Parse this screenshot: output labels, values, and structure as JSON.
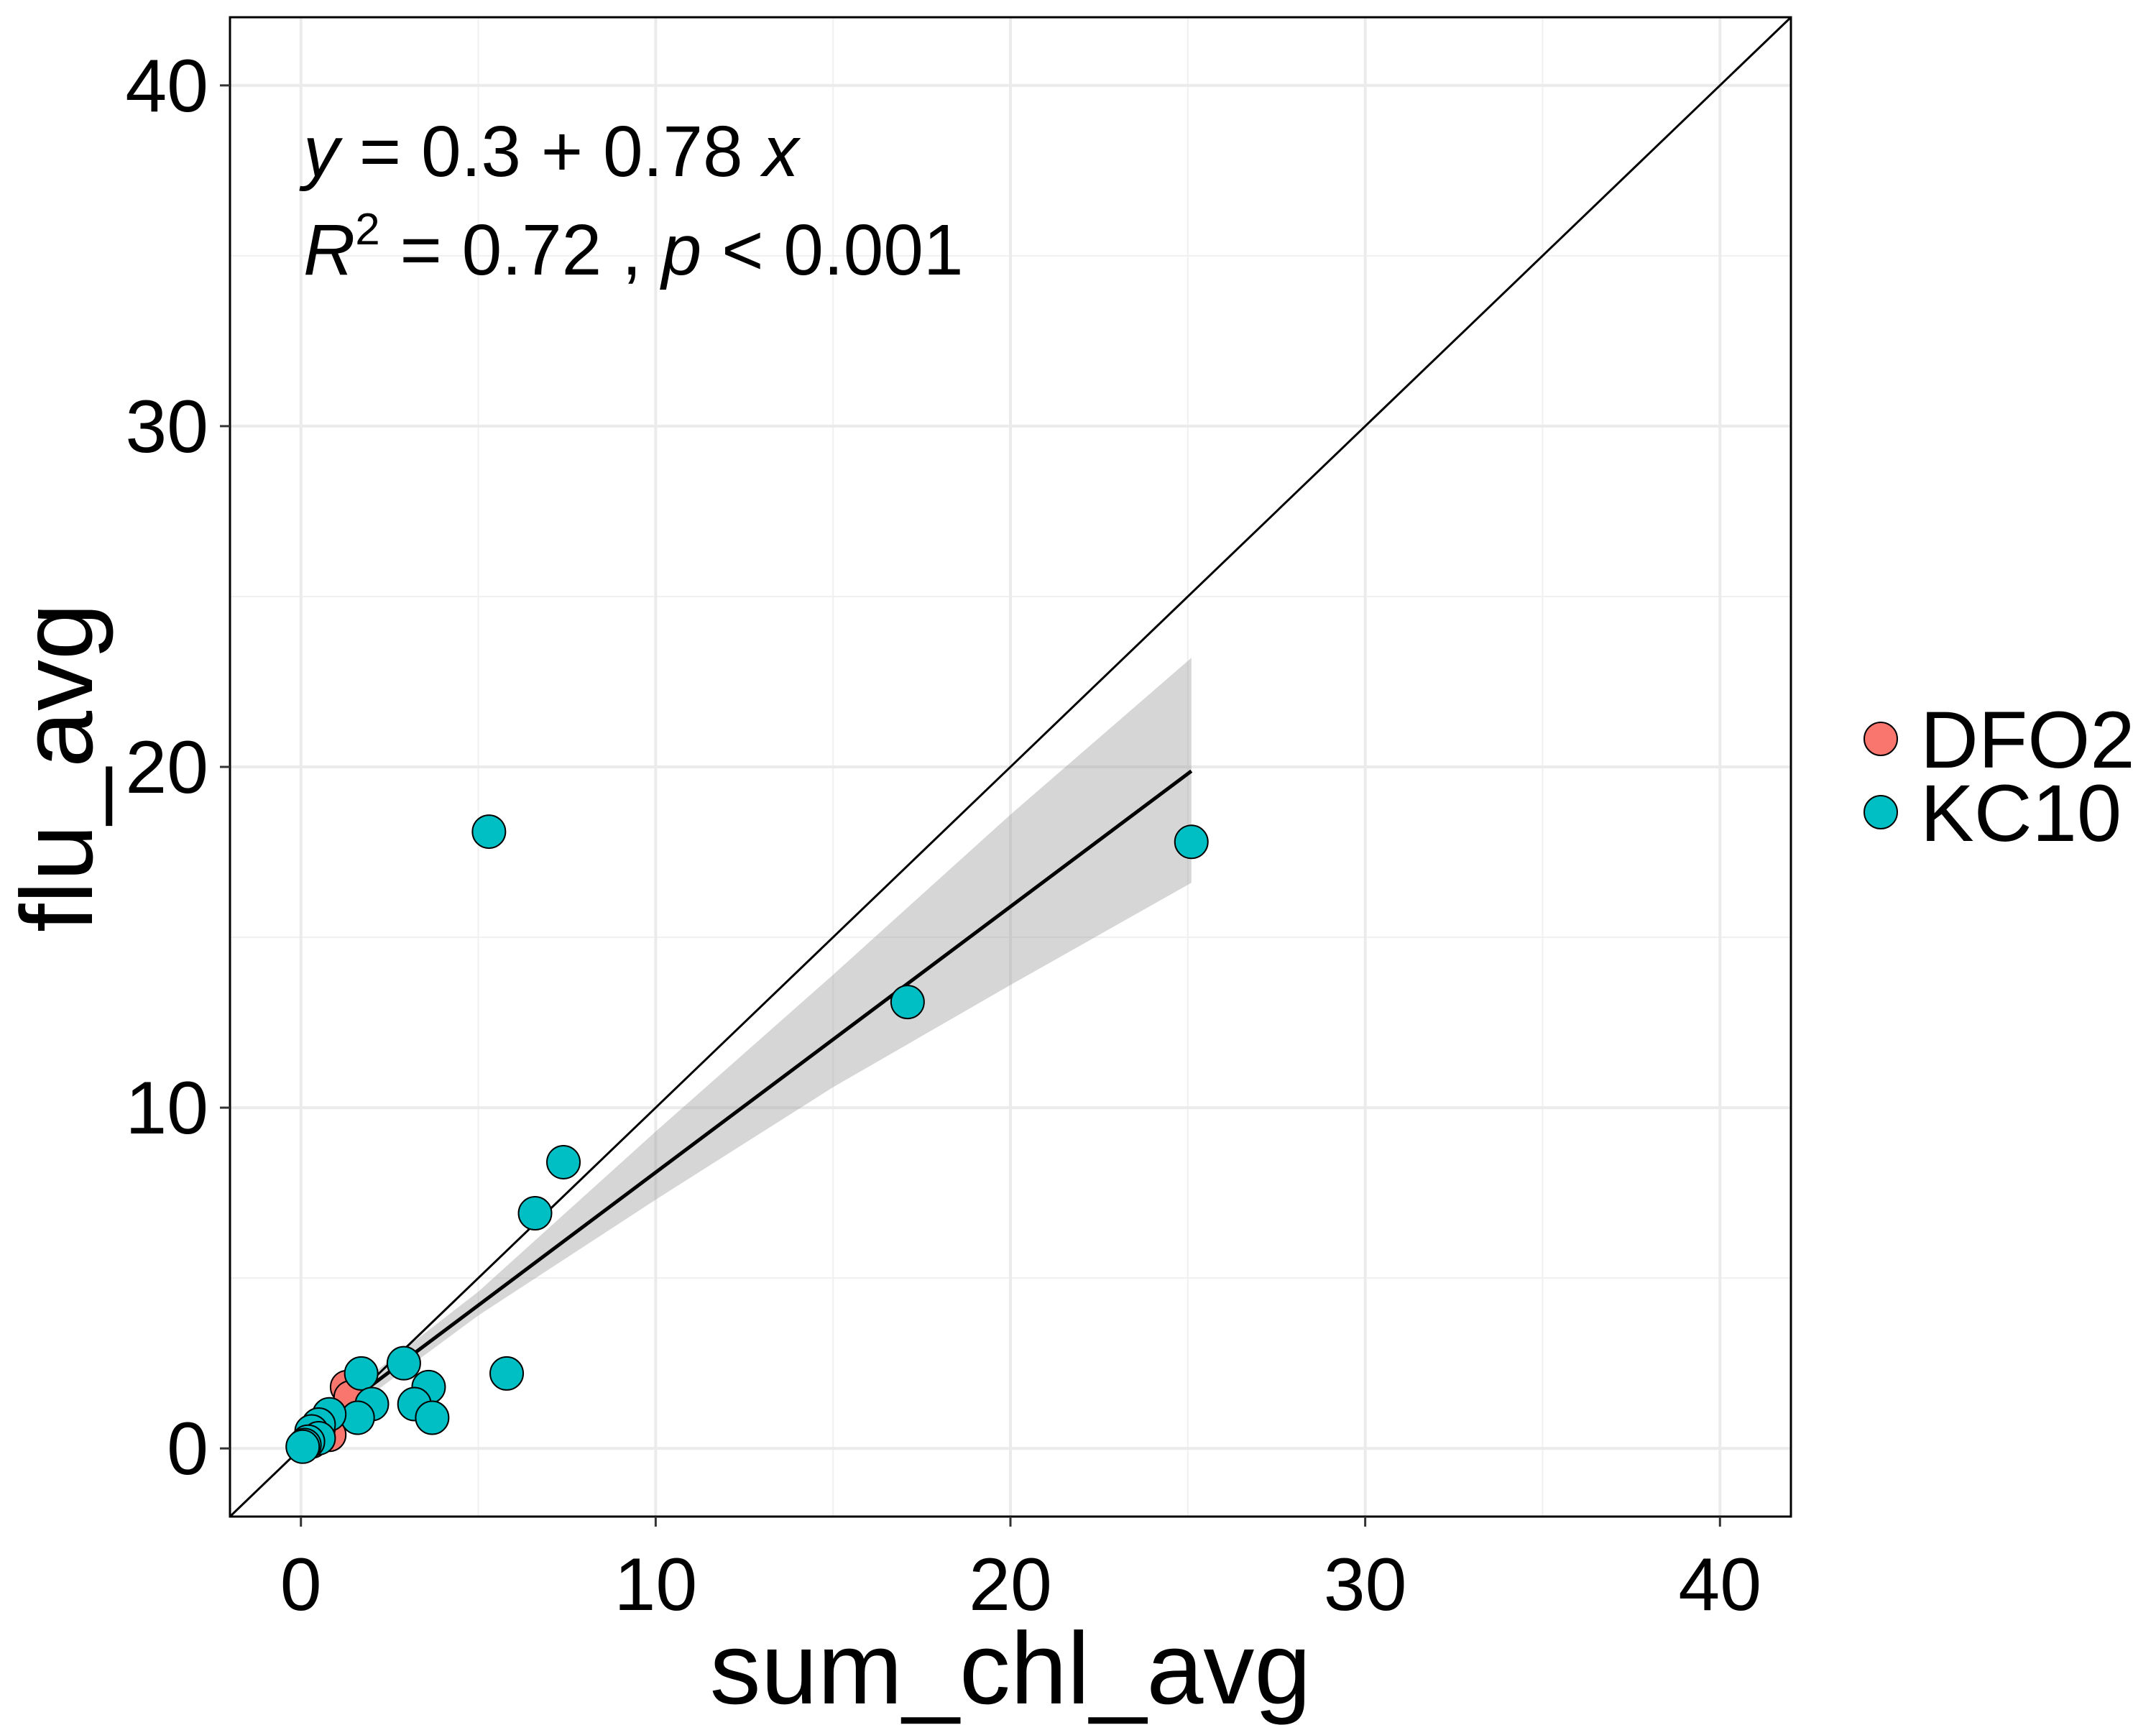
{
  "chart_data": {
    "type": "scatter",
    "xlabel": "sum_chl_avg",
    "ylabel": "flu_avg",
    "xlim": [
      -2,
      42
    ],
    "ylim": [
      -2,
      42
    ],
    "x_ticks": [
      0,
      10,
      20,
      30,
      40
    ],
    "y_ticks": [
      0,
      10,
      20,
      30,
      40
    ],
    "x_tick_labels": [
      "0",
      "10",
      "20",
      "30",
      "40"
    ],
    "y_tick_labels": [
      "0",
      "10",
      "20",
      "30",
      "40"
    ],
    "grid": true,
    "legend_position": "right",
    "annotation": {
      "eq_y": "y",
      "eq_rest": " = 0.3 + 0.78 ",
      "eq_x": "x",
      "r2_r": "R",
      "r2_sup": "2",
      "r2_rest": " = 0.72 , ",
      "r2_p": "p",
      "r2_tail": " < 0.001"
    },
    "identity_line": {
      "slope": 1,
      "intercept": 0
    },
    "fit": {
      "slope": 0.78,
      "intercept": 0.3,
      "x_range": [
        0.05,
        25.1
      ],
      "ci_band": [
        {
          "x": 0.05,
          "lo": 0.1,
          "hi": 0.6
        },
        {
          "x": 5,
          "lo": 3.9,
          "hi": 4.6
        },
        {
          "x": 10,
          "lo": 7.3,
          "hi": 9.3
        },
        {
          "x": 15,
          "lo": 10.6,
          "hi": 13.9
        },
        {
          "x": 20,
          "lo": 13.6,
          "hi": 18.6
        },
        {
          "x": 25.1,
          "lo": 16.6,
          "hi": 23.2
        }
      ]
    },
    "series": [
      {
        "name": "DFO2",
        "color": "#F8766D",
        "points": [
          {
            "x": 1.3,
            "y": 1.8
          },
          {
            "x": 1.4,
            "y": 1.5
          },
          {
            "x": 0.8,
            "y": 0.4
          },
          {
            "x": 0.5,
            "y": 0.6
          },
          {
            "x": 0.3,
            "y": 0.2
          }
        ]
      },
      {
        "name": "KC10",
        "color": "#00BFC4",
        "points": [
          {
            "x": 5.3,
            "y": 18.1
          },
          {
            "x": 25.1,
            "y": 17.8
          },
          {
            "x": 17.1,
            "y": 13.1
          },
          {
            "x": 7.4,
            "y": 8.4
          },
          {
            "x": 6.6,
            "y": 6.9
          },
          {
            "x": 2.9,
            "y": 2.5
          },
          {
            "x": 1.7,
            "y": 2.2
          },
          {
            "x": 5.8,
            "y": 2.2
          },
          {
            "x": 3.6,
            "y": 1.8
          },
          {
            "x": 3.2,
            "y": 1.3
          },
          {
            "x": 2.0,
            "y": 1.3
          },
          {
            "x": 3.7,
            "y": 0.9
          },
          {
            "x": 1.6,
            "y": 0.9
          },
          {
            "x": 0.8,
            "y": 1.0
          },
          {
            "x": 0.5,
            "y": 0.7
          },
          {
            "x": 0.3,
            "y": 0.5
          },
          {
            "x": 0.5,
            "y": 0.3
          },
          {
            "x": 0.2,
            "y": 0.2
          },
          {
            "x": 0.1,
            "y": 0.1
          },
          {
            "x": 0.05,
            "y": 0.05
          }
        ]
      }
    ]
  }
}
